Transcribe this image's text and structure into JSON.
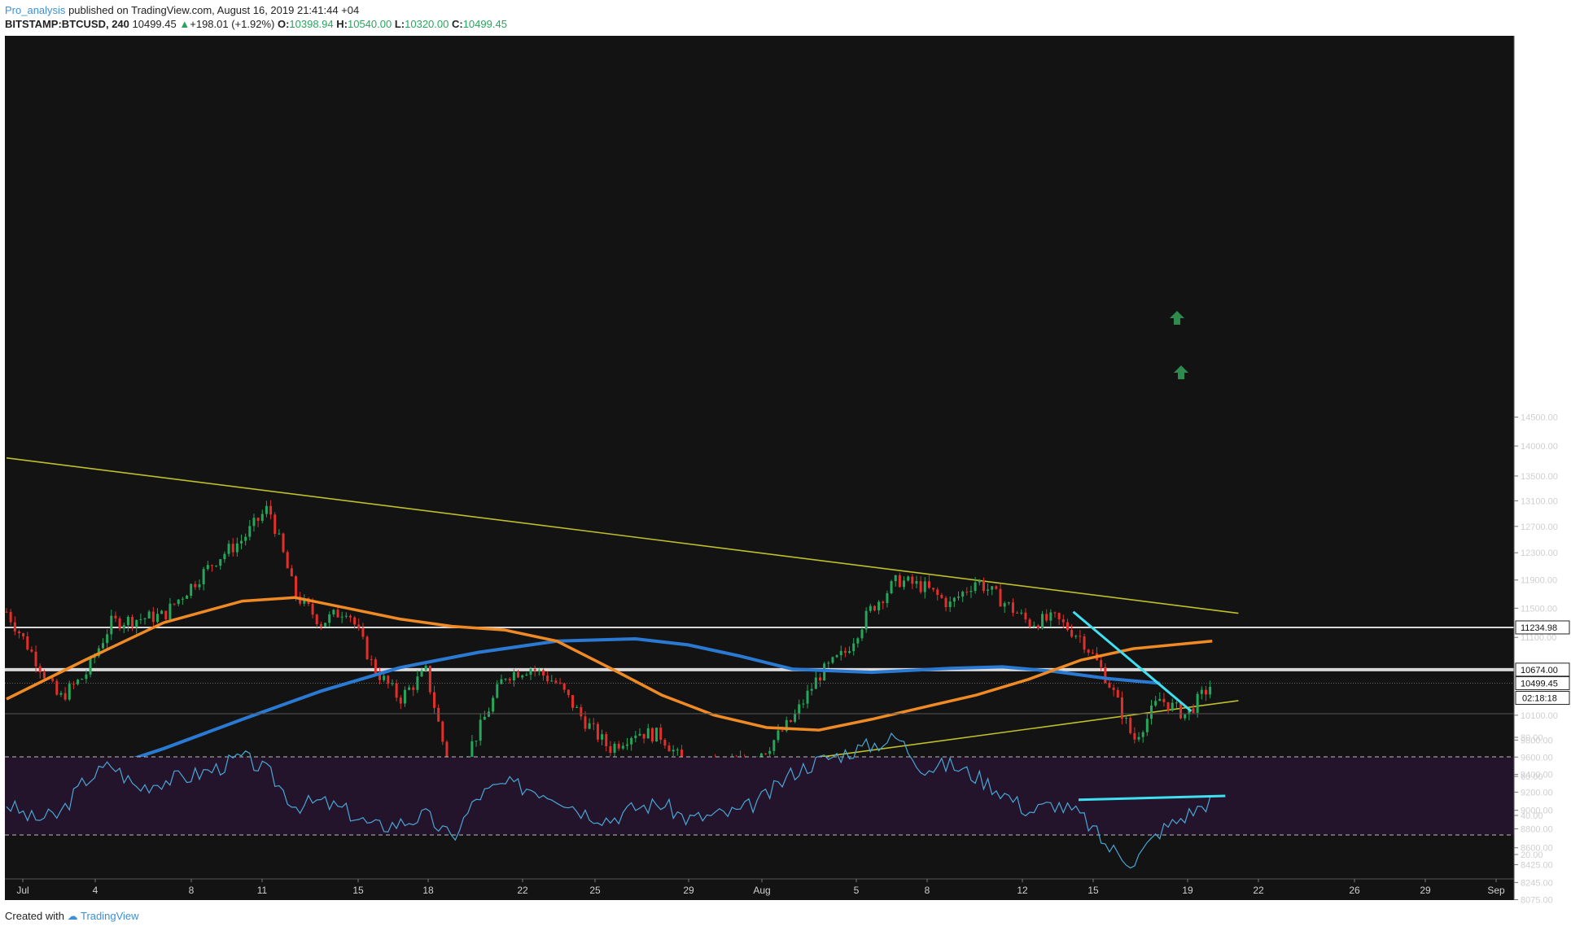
{
  "header": {
    "author": "Pro_analysis",
    "published": "published on TradingView.com, August 16, 2019 21:41:44 +04",
    "symbol": "BITSTAMP:BTCUSD, 240",
    "last": "10499.45",
    "change": "+198.01 (+1.92%)",
    "open_label": "O:",
    "open": "10398.94",
    "high_label": "H:",
    "high": "10540.00",
    "low_label": "L:",
    "low": "10320.00",
    "close_label": "C:",
    "close": "10499.45",
    "up_glyph": "▲"
  },
  "footer": {
    "created": "Created with",
    "brand": "TradingView"
  },
  "colors": {
    "bg": "#131313",
    "up": "#26a65b",
    "down": "#e0302b",
    "ma_fast": "#f08a24",
    "ma_slow": "#2a7ad3",
    "wedge": "#bfbf2a",
    "level": "#d8d8d8",
    "trend": "#3fe0f0",
    "rsi": "#4aa6d6",
    "rsi_band": "#23142b",
    "arrow": "#2f8a4e"
  },
  "chart_data": [
    {
      "type": "candlestick",
      "x_ticks": [
        "Jul",
        "4",
        "8",
        "11",
        "15",
        "18",
        "22",
        "25",
        "29",
        "Aug",
        "5",
        "8",
        "12",
        "15",
        "19",
        "22",
        "26",
        "29",
        "Sep"
      ],
      "y_ticks": [
        8075,
        8245,
        8425,
        8600,
        8800,
        9000,
        9200,
        9400,
        9600,
        9800,
        10100,
        11100,
        11500,
        11900,
        12300,
        12700,
        13100,
        13500,
        14000,
        14500
      ],
      "y_tick_labels": [
        "8075.00",
        "8245.00",
        "8425.00",
        "8600.00",
        "8800.00",
        "9000.00",
        "9200.00",
        "9400.00",
        "9600.00",
        "9800.00",
        "10100.00",
        "11100.00",
        "11500.00",
        "11900.00",
        "12300.00",
        "12700.00",
        "13100.00",
        "13500.00",
        "14000.00",
        "14500.00"
      ],
      "y_scale": "log",
      "close_path": [
        [
          0,
          11450
        ],
        [
          2,
          10300
        ],
        [
          3,
          10600
        ],
        [
          4,
          11300
        ],
        [
          6,
          11400
        ],
        [
          8,
          12200
        ],
        [
          9,
          12500
        ],
        [
          10,
          13000
        ],
        [
          11,
          11700
        ],
        [
          12,
          11300
        ],
        [
          13,
          11500
        ],
        [
          14,
          10700
        ],
        [
          15,
          10300
        ],
        [
          16,
          10650
        ],
        [
          17,
          9300
        ],
        [
          18,
          9900
        ],
        [
          19,
          10600
        ],
        [
          20,
          10700
        ],
        [
          21,
          10500
        ],
        [
          22,
          10050
        ],
        [
          23,
          9700
        ],
        [
          24,
          9900
        ],
        [
          25,
          9850
        ],
        [
          26,
          9450
        ],
        [
          27,
          9500
        ],
        [
          28,
          9550
        ],
        [
          29,
          9700
        ],
        [
          30,
          10050
        ],
        [
          31,
          10600
        ],
        [
          32,
          10900
        ],
        [
          33,
          11500
        ],
        [
          34,
          11900
        ],
        [
          35,
          11800
        ],
        [
          36,
          11550
        ],
        [
          37,
          11900
        ],
        [
          38,
          11600
        ],
        [
          39,
          11300
        ],
        [
          40,
          11350
        ],
        [
          41,
          11100
        ],
        [
          42,
          10550
        ],
        [
          43,
          9800
        ],
        [
          44,
          10300
        ],
        [
          45,
          10100
        ],
        [
          46,
          10499.45
        ]
      ],
      "ma_fast_path": [
        [
          0,
          10300
        ],
        [
          3,
          10800
        ],
        [
          6,
          11300
        ],
        [
          9,
          11600
        ],
        [
          11,
          11650
        ],
        [
          13,
          11500
        ],
        [
          15,
          11350
        ],
        [
          17,
          11250
        ],
        [
          19,
          11200
        ],
        [
          21,
          11050
        ],
        [
          23,
          10700
        ],
        [
          25,
          10350
        ],
        [
          27,
          10100
        ],
        [
          29,
          9950
        ],
        [
          31,
          9920
        ],
        [
          33,
          10050
        ],
        [
          35,
          10200
        ],
        [
          37,
          10350
        ],
        [
          39,
          10550
        ],
        [
          41,
          10800
        ],
        [
          43,
          10950
        ],
        [
          46,
          11050
        ]
      ],
      "ma_slow_path": [
        [
          0,
          9170
        ],
        [
          3,
          9400
        ],
        [
          6,
          9700
        ],
        [
          9,
          10050
        ],
        [
          12,
          10400
        ],
        [
          15,
          10700
        ],
        [
          18,
          10900
        ],
        [
          21,
          11050
        ],
        [
          24,
          11080
        ],
        [
          26,
          11000
        ],
        [
          28,
          10850
        ],
        [
          30,
          10680
        ],
        [
          33,
          10640
        ],
        [
          36,
          10690
        ],
        [
          38,
          10710
        ],
        [
          40,
          10650
        ],
        [
          42,
          10560
        ],
        [
          44,
          10500
        ]
      ],
      "wedge_upper": [
        [
          0,
          13800
        ],
        [
          47,
          11430
        ]
      ],
      "wedge_lower": [
        [
          17.3,
          9050
        ],
        [
          47,
          10280
        ]
      ],
      "horizontal_levels": [
        11234.98,
        10674.0
      ],
      "trendline": [
        [
          40.7,
          11450
        ],
        [
          45.2,
          10150
        ]
      ],
      "price_labels": [
        "11234.98",
        "10674.00",
        "10499.45"
      ],
      "countdown": "02:18:18"
    },
    {
      "type": "line",
      "name": "RSI",
      "y_ticks": [
        20,
        40,
        60,
        80
      ],
      "y_tick_labels": [
        "20.00",
        "40.00",
        "60.00",
        "80.00"
      ],
      "band": [
        30,
        70
      ],
      "rsi_path": [
        [
          0,
          46
        ],
        [
          1,
          38
        ],
        [
          2,
          40
        ],
        [
          3,
          58
        ],
        [
          4,
          66
        ],
        [
          5,
          54
        ],
        [
          6,
          58
        ],
        [
          7,
          60
        ],
        [
          8,
          64
        ],
        [
          9,
          70
        ],
        [
          10,
          62
        ],
        [
          11,
          45
        ],
        [
          12,
          47
        ],
        [
          13,
          42
        ],
        [
          14,
          34
        ],
        [
          15,
          36
        ],
        [
          16,
          40
        ],
        [
          17,
          28
        ],
        [
          18,
          50
        ],
        [
          19,
          56
        ],
        [
          20,
          54
        ],
        [
          21,
          50
        ],
        [
          22,
          42
        ],
        [
          23,
          38
        ],
        [
          24,
          44
        ],
        [
          25,
          46
        ],
        [
          26,
          38
        ],
        [
          27,
          40
        ],
        [
          28,
          42
        ],
        [
          29,
          50
        ],
        [
          30,
          62
        ],
        [
          31,
          68
        ],
        [
          32,
          72
        ],
        [
          33,
          76
        ],
        [
          34,
          80
        ],
        [
          35,
          64
        ],
        [
          36,
          66
        ],
        [
          37,
          60
        ],
        [
          38,
          52
        ],
        [
          39,
          42
        ],
        [
          40,
          46
        ],
        [
          41,
          40
        ],
        [
          42,
          24
        ],
        [
          43,
          16
        ],
        [
          44,
          32
        ],
        [
          45,
          40
        ],
        [
          46,
          48
        ]
      ],
      "divergence_line": [
        [
          40.9,
          48
        ],
        [
          46.5,
          50
        ]
      ]
    }
  ]
}
